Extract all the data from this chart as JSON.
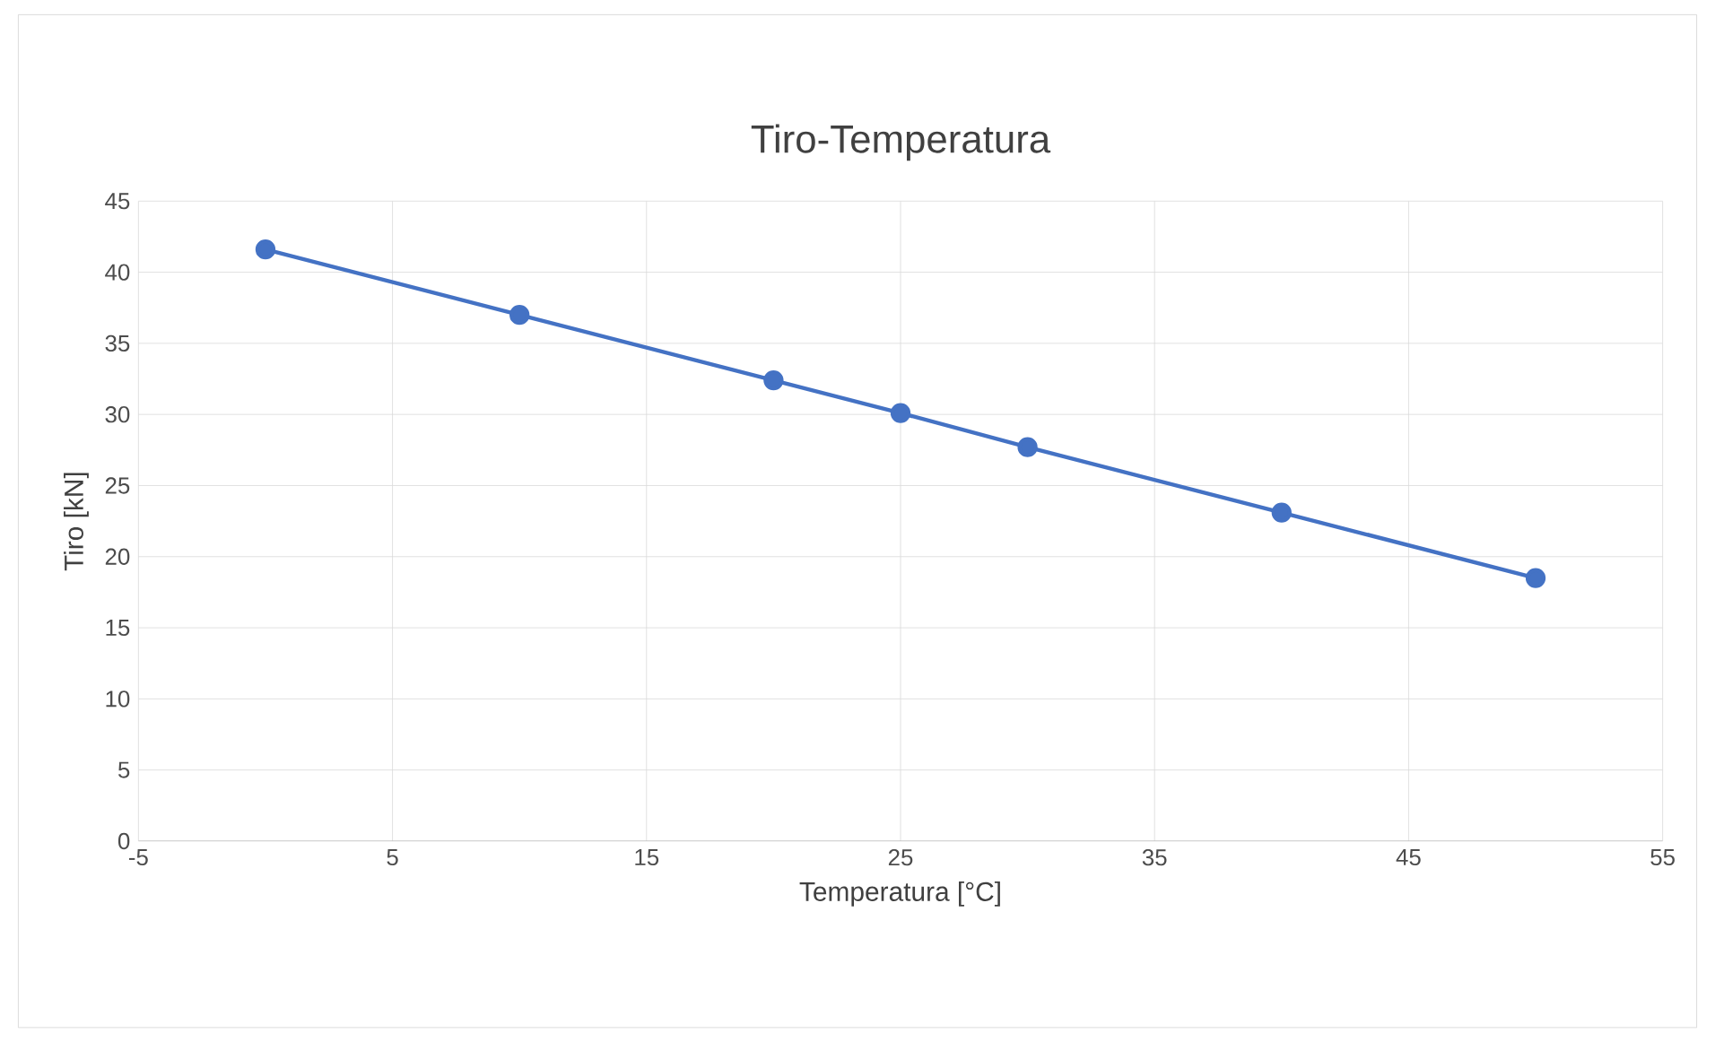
{
  "chart_data": {
    "type": "line",
    "title": "Tiro-Temperatura",
    "xlabel": "Temperatura [°C]",
    "ylabel": "Tiro [kN]",
    "x": [
      0,
      10,
      20,
      25,
      30,
      40,
      50
    ],
    "series": [
      {
        "color": "#4472c4",
        "values": [
          41.6,
          37.0,
          32.4,
          30.1,
          27.7,
          23.1,
          18.5
        ]
      }
    ],
    "xlim": [
      -5,
      55
    ],
    "xticks": [
      -5,
      5,
      15,
      25,
      35,
      45,
      55
    ],
    "ylim": [
      0,
      45
    ],
    "yticks": [
      0,
      5,
      10,
      15,
      20,
      25,
      30,
      35,
      40,
      45
    ],
    "grid": true,
    "marker": "circle",
    "line_style": "solid"
  }
}
